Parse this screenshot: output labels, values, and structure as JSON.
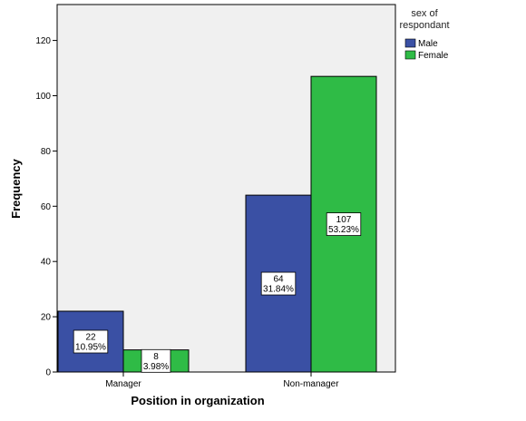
{
  "chart_data": {
    "type": "bar",
    "categories": [
      "Manager",
      "Non-manager"
    ],
    "series": [
      {
        "name": "Male",
        "color": "#3a50a4",
        "values": [
          22,
          64
        ],
        "labels": [
          "10.95%",
          "31.84%"
        ]
      },
      {
        "name": "Female",
        "color": "#2fbb46",
        "values": [
          8,
          107
        ],
        "labels": [
          "3.98%",
          "53.23%"
        ]
      }
    ],
    "xlabel": "Position in organization",
    "ylabel": "Frequency",
    "ylim": [
      0,
      133
    ],
    "yticks": [
      0,
      20,
      40,
      60,
      80,
      100,
      120
    ],
    "legend_title_lines": [
      "sex of",
      "respondant"
    ],
    "legend_position": "top-right",
    "plot_background": "#f0f0f0",
    "grid": false
  }
}
